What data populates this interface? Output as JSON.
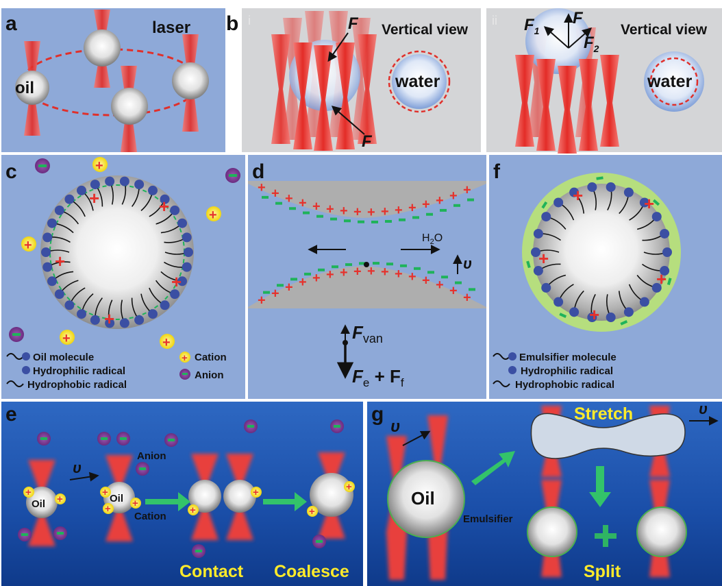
{
  "panels": {
    "a": {
      "letter": "a",
      "laser_label": "laser",
      "oil_label": "oil"
    },
    "b": {
      "letter": "b",
      "sub_i": "i",
      "sub_ii": "ii",
      "force_label": "F",
      "f1_label": "F",
      "f1_sub": "1",
      "f2_label": "F",
      "f2_sub": "2",
      "vertical_view": "Vertical view",
      "water_label": "water"
    },
    "c": {
      "letter": "c",
      "legend": {
        "oil_molecule": "Oil molecule",
        "hydrophilic": "Hydrophilic radical",
        "hydrophobic": "Hydrophobic radical",
        "cation": "Cation",
        "anion": "Anion"
      }
    },
    "d": {
      "letter": "d",
      "water_label": "H",
      "water_sub": "2",
      "water_tail": "O",
      "velocity": "υ",
      "f_van": "F",
      "f_van_sub": "van",
      "f_e": "F",
      "f_e_sub": "e",
      "plus_sign": " + F",
      "f_f_sub": "f"
    },
    "e": {
      "letter": "e",
      "oil_label": "Oil",
      "anion_label": "Anion",
      "cation_label": "Cation",
      "velocity": "υ",
      "contact": "Contact",
      "coalesce": "Coalesce"
    },
    "f": {
      "letter": "f",
      "legend": {
        "emulsifier": "Emulsifier molecule",
        "hydrophilic": "Hydrophilic radical",
        "hydrophobic": "Hydrophobic radical"
      }
    },
    "g": {
      "letter": "g",
      "velocity": "υ",
      "oil_label": "Oil",
      "emulsifier_label": "Emulsifier",
      "stretch": "Stretch",
      "split": "Split"
    }
  },
  "colors": {
    "panel_blue": "#8ea9d8",
    "panel_gray": "#d4d5d7",
    "deep_blue": "#1d52a8",
    "laser_red": "#e8413c",
    "cation_yellow": "#f5e21b",
    "anion_purple": "#7d3a92",
    "radical_blue": "#3b4fa3",
    "emulsifier_green": "#b6de7e"
  }
}
